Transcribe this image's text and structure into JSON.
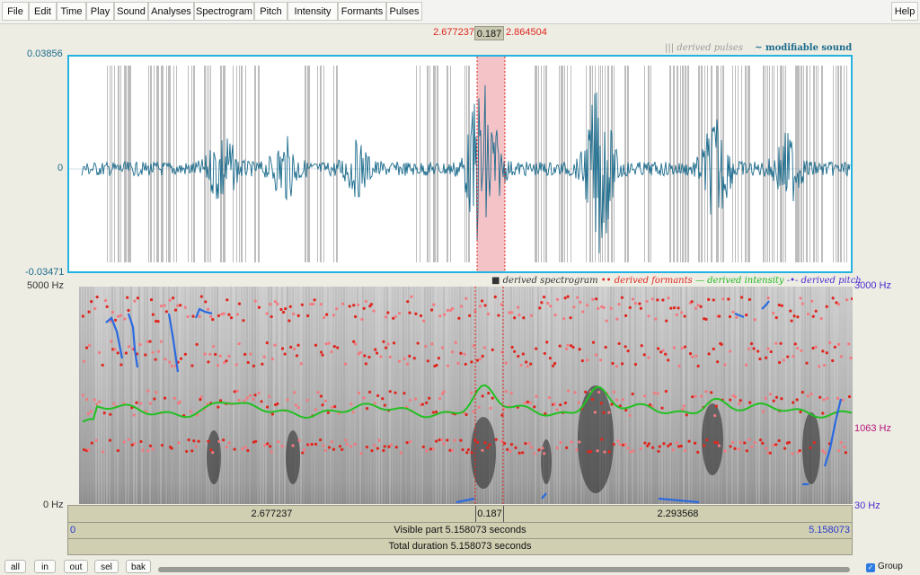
{
  "menu": [
    "File",
    "Edit",
    "Time",
    "Play",
    "Sound",
    "Analyses",
    "Spectrogram",
    "Pitch",
    "Intensity",
    "Formants",
    "Pulses"
  ],
  "help_label": "Help",
  "selection": {
    "start": "2.677237",
    "length": "0.187",
    "end": "2.864504"
  },
  "wave_legend": {
    "pulses": "||| derived pulses",
    "sound": "~ modifiable sound"
  },
  "waveform": {
    "max_label": "0.03856",
    "zero_label": "0",
    "min_label": "-0.03471"
  },
  "spec_legend": {
    "spectrogram": "derived spectrogram",
    "formants": "derived formants",
    "intensity": "derived intensity",
    "pitch": "derived pitch"
  },
  "spectrogram_axis": {
    "left_top": "5000 Hz",
    "left_bottom": "0 Hz",
    "right_top": "3000 Hz",
    "right_mid": "1063 Hz",
    "right_bottom": "30 Hz"
  },
  "time_bar": {
    "left": "2.677237",
    "mid": "0.187",
    "right": "2.293568"
  },
  "visible_bar": {
    "start": "0",
    "label": "Visible part 5.158073 seconds",
    "end": "5.158073"
  },
  "total_bar": {
    "label": "Total duration 5.158073 seconds"
  },
  "bottom_buttons": [
    "all",
    "in",
    "out",
    "sel",
    "bak"
  ],
  "group_label": "Group",
  "colors": {
    "accent": "#24b3e0",
    "wave": "#1b6b8c",
    "selection": "#e0261e",
    "formant": "#e0261e",
    "intensity": "#22b822",
    "pitch": "#2a6ae0"
  }
}
